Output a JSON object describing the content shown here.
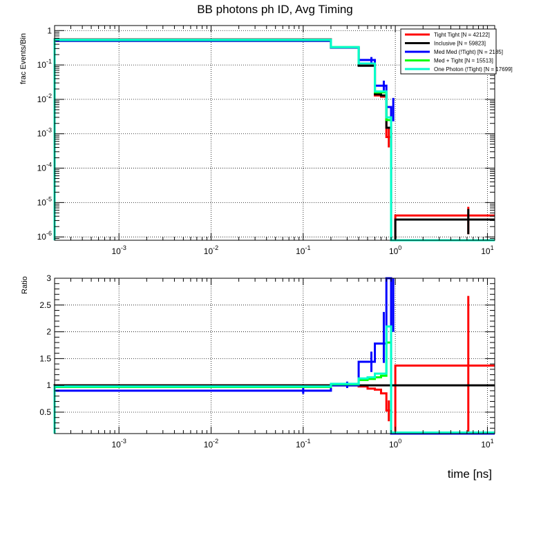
{
  "chart_data": [
    {
      "type": "line",
      "title": "BB photons ph ID, Avg Timing",
      "ylabel": "frac Events/Bin",
      "xscale": "log",
      "yscale": "log",
      "xlim": [
        0.0002,
        12
      ],
      "ylim": [
        8e-07,
        1.4
      ],
      "grid": true,
      "legend_position": "top-right",
      "bin_edges": [
        0.0002,
        0.2,
        0.4,
        0.5,
        0.6,
        0.7,
        0.8,
        0.9,
        1.0,
        12
      ],
      "series": [
        {
          "name": "Tight Tight [N = 42122]",
          "color": "#ff0000",
          "values": [
            0.55,
            0.32,
            0.098,
            0.098,
            0.013,
            0.012,
            0.0008,
            0.0,
            4.2e-06
          ],
          "errors": [
            {
              "x": 0.85,
              "y": 0.0008,
              "lo": 0.0004,
              "hi": 0.0016
            },
            {
              "x": 6.2,
              "y": 4.2e-06,
              "lo": 1.2e-06,
              "hi": 7.5e-06
            }
          ]
        },
        {
          "name": "Inclusive [N = 59823]",
          "color": "#000000",
          "values": [
            0.55,
            0.32,
            0.095,
            0.095,
            0.014,
            0.013,
            0.0015,
            0.0,
            3.2e-06
          ],
          "errors": [
            {
              "x": 6.2,
              "y": 3.2e-06,
              "lo": 1.2e-06,
              "hi": 6.5e-06
            }
          ]
        },
        {
          "name": "Med Med (!Tight) [N = 2185]",
          "color": "#0000ff",
          "values": [
            0.5,
            0.32,
            0.14,
            0.14,
            0.025,
            0.025,
            0.006,
            0.0,
            0.0
          ],
          "errors": [
            {
              "x": 0.55,
              "y": 0.14,
              "lo": 0.11,
              "hi": 0.17
            },
            {
              "x": 0.75,
              "y": 0.025,
              "lo": 0.017,
              "hi": 0.035
            },
            {
              "x": 0.95,
              "y": 0.006,
              "lo": 0.0023,
              "hi": 0.011
            }
          ]
        },
        {
          "name": "Med + Tight [N = 15513]",
          "color": "#00ff00",
          "values": [
            0.53,
            0.33,
            0.11,
            0.11,
            0.016,
            0.016,
            0.0025,
            0.0,
            0.0
          ],
          "errors": []
        },
        {
          "name": "One Photon (!Tight) [N = 17699]",
          "color": "#00ffcc",
          "values": [
            0.54,
            0.33,
            0.11,
            0.11,
            0.017,
            0.017,
            0.003,
            0.0,
            0.0
          ],
          "errors": []
        }
      ]
    },
    {
      "type": "line",
      "xlabel": "time [ns]",
      "ylabel": "Ratio",
      "xscale": "log",
      "yscale": "linear",
      "xlim": [
        0.0002,
        12
      ],
      "ylim": [
        0.1,
        3
      ],
      "grid": true,
      "bin_edges": [
        0.0002,
        0.2,
        0.4,
        0.5,
        0.6,
        0.7,
        0.8,
        0.9,
        1.0,
        12
      ],
      "series": [
        {
          "color": "#ff0000",
          "values": [
            1.0,
            1.0,
            0.98,
            0.94,
            0.92,
            0.85,
            0.53,
            0.0,
            1.37
          ],
          "errors": [
            {
              "x": 0.85,
              "y": 0.53,
              "lo": 0.33,
              "hi": 0.72
            },
            {
              "x": 6.2,
              "y": 1.37,
              "lo": 0.1,
              "hi": 2.67
            }
          ]
        },
        {
          "color": "#000000",
          "values": [
            1.0,
            1.0,
            1.0,
            1.0,
            1.0,
            1.0,
            1.0,
            1.0,
            1.0
          ],
          "errors": []
        },
        {
          "color": "#0000ff",
          "values": [
            0.9,
            1.0,
            1.44,
            1.44,
            1.78,
            1.78,
            3.0,
            0.1,
            0.1
          ],
          "errors": [
            {
              "x": 0.1,
              "y": 0.9,
              "lo": 0.84,
              "hi": 0.96
            },
            {
              "x": 0.3,
              "y": 1.0,
              "lo": 0.95,
              "hi": 1.07
            },
            {
              "x": 0.55,
              "y": 1.44,
              "lo": 1.25,
              "hi": 1.63
            },
            {
              "x": 0.75,
              "y": 1.78,
              "lo": 1.42,
              "hi": 2.37
            },
            {
              "x": 0.95,
              "y": 3.0,
              "lo": 2.0,
              "hi": 3.0
            }
          ]
        },
        {
          "color": "#00ff00",
          "values": [
            0.97,
            1.02,
            1.1,
            1.12,
            1.15,
            1.18,
            1.8,
            0.12,
            0.12
          ],
          "errors": []
        },
        {
          "color": "#00ffcc",
          "values": [
            0.98,
            1.03,
            1.13,
            1.15,
            1.22,
            1.22,
            2.1,
            0.12,
            0.12
          ],
          "errors": []
        }
      ]
    }
  ]
}
